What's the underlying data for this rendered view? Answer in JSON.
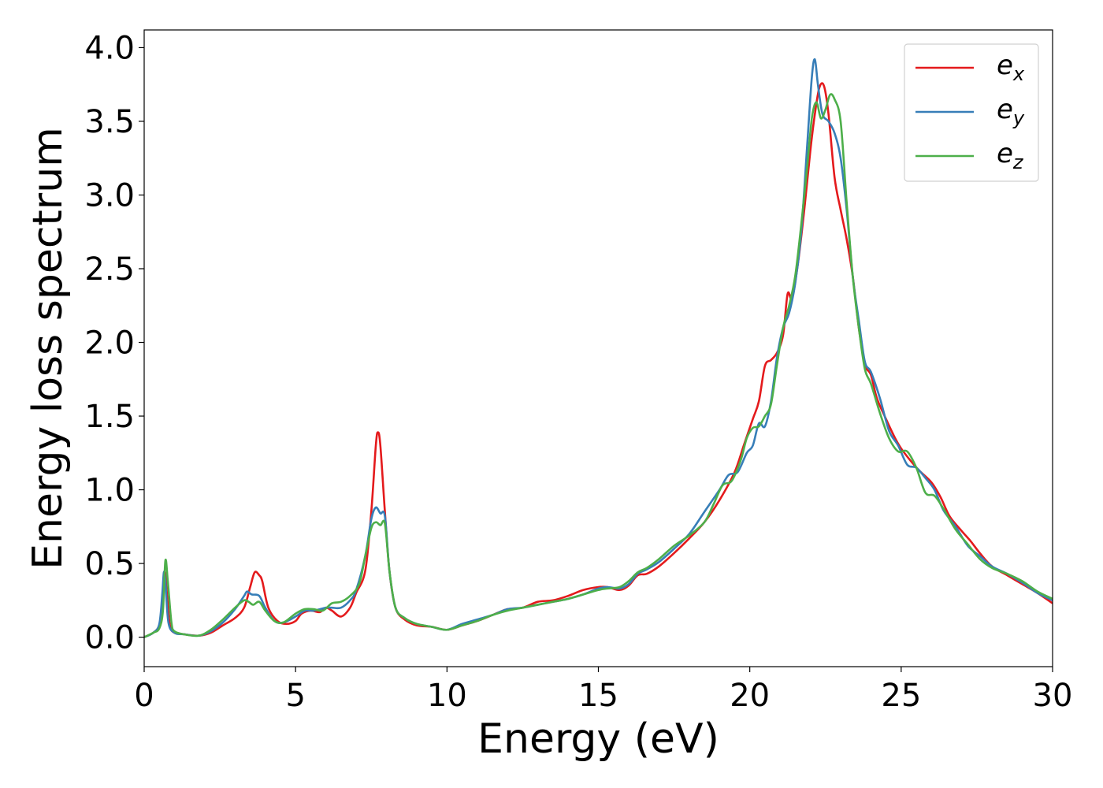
{
  "chart_data": {
    "type": "line",
    "xlabel": "Energy (eV)",
    "ylabel": "Energy loss spectrum",
    "xlim": [
      0,
      30
    ],
    "ylim": [
      -0.2,
      4.12
    ],
    "xticks": [
      "0",
      "5",
      "10",
      "15",
      "20",
      "25",
      "30"
    ],
    "yticks": [
      "0.0",
      "0.5",
      "1.0",
      "1.5",
      "2.0",
      "2.5",
      "3.0",
      "3.5",
      "4.0"
    ],
    "xtick_values": [
      0,
      5,
      10,
      15,
      20,
      25,
      30
    ],
    "ytick_values": [
      0,
      0.5,
      1.0,
      1.5,
      2.0,
      2.5,
      3.0,
      3.5,
      4.0
    ],
    "grid": false,
    "legend_position": "top-right",
    "series": [
      {
        "name_base": "e",
        "name_sub": "x",
        "color": "#e41a1c",
        "points": [
          [
            0,
            0
          ],
          [
            0.3,
            0.03
          ],
          [
            0.5,
            0.08
          ],
          [
            0.6,
            0.2
          ],
          [
            0.68,
            0.44
          ],
          [
            0.75,
            0.3
          ],
          [
            0.85,
            0.08
          ],
          [
            1.0,
            0.03
          ],
          [
            1.3,
            0.02
          ],
          [
            1.8,
            0.01
          ],
          [
            2.2,
            0.03
          ],
          [
            2.6,
            0.08
          ],
          [
            3.0,
            0.13
          ],
          [
            3.3,
            0.2
          ],
          [
            3.5,
            0.34
          ],
          [
            3.65,
            0.44
          ],
          [
            3.8,
            0.42
          ],
          [
            3.9,
            0.38
          ],
          [
            4.1,
            0.2
          ],
          [
            4.4,
            0.11
          ],
          [
            4.7,
            0.09
          ],
          [
            5.0,
            0.11
          ],
          [
            5.2,
            0.16
          ],
          [
            5.5,
            0.18
          ],
          [
            5.8,
            0.17
          ],
          [
            6.0,
            0.2
          ],
          [
            6.2,
            0.18
          ],
          [
            6.5,
            0.14
          ],
          [
            6.8,
            0.2
          ],
          [
            7.0,
            0.3
          ],
          [
            7.3,
            0.45
          ],
          [
            7.5,
            0.85
          ],
          [
            7.65,
            1.3
          ],
          [
            7.72,
            1.39
          ],
          [
            7.8,
            1.3
          ],
          [
            7.95,
            0.85
          ],
          [
            8.1,
            0.45
          ],
          [
            8.3,
            0.2
          ],
          [
            8.6,
            0.12
          ],
          [
            9.0,
            0.08
          ],
          [
            9.5,
            0.07
          ],
          [
            10.0,
            0.05
          ],
          [
            10.5,
            0.08
          ],
          [
            11.0,
            0.11
          ],
          [
            11.5,
            0.15
          ],
          [
            12.0,
            0.19
          ],
          [
            12.5,
            0.2
          ],
          [
            13.0,
            0.24
          ],
          [
            13.5,
            0.25
          ],
          [
            14.0,
            0.28
          ],
          [
            14.5,
            0.32
          ],
          [
            15.0,
            0.34
          ],
          [
            15.3,
            0.34
          ],
          [
            15.7,
            0.32
          ],
          [
            16.0,
            0.35
          ],
          [
            16.3,
            0.42
          ],
          [
            16.6,
            0.43
          ],
          [
            17.0,
            0.48
          ],
          [
            17.5,
            0.57
          ],
          [
            18.0,
            0.67
          ],
          [
            18.5,
            0.78
          ],
          [
            19.0,
            0.93
          ],
          [
            19.5,
            1.12
          ],
          [
            19.8,
            1.3
          ],
          [
            20.1,
            1.48
          ],
          [
            20.3,
            1.6
          ],
          [
            20.5,
            1.84
          ],
          [
            20.7,
            1.88
          ],
          [
            20.9,
            1.93
          ],
          [
            21.1,
            2.05
          ],
          [
            21.25,
            2.33
          ],
          [
            21.4,
            2.3
          ],
          [
            21.6,
            2.55
          ],
          [
            21.8,
            2.9
          ],
          [
            22.0,
            3.3
          ],
          [
            22.15,
            3.55
          ],
          [
            22.3,
            3.73
          ],
          [
            22.45,
            3.74
          ],
          [
            22.6,
            3.55
          ],
          [
            22.8,
            3.12
          ],
          [
            23.0,
            2.9
          ],
          [
            23.2,
            2.7
          ],
          [
            23.4,
            2.45
          ],
          [
            23.6,
            2.1
          ],
          [
            23.8,
            1.85
          ],
          [
            24.0,
            1.78
          ],
          [
            24.2,
            1.62
          ],
          [
            24.5,
            1.48
          ],
          [
            24.8,
            1.35
          ],
          [
            25.0,
            1.28
          ],
          [
            25.3,
            1.2
          ],
          [
            25.6,
            1.13
          ],
          [
            26.0,
            1.05
          ],
          [
            26.3,
            0.95
          ],
          [
            26.6,
            0.82
          ],
          [
            27.0,
            0.72
          ],
          [
            27.3,
            0.65
          ],
          [
            27.6,
            0.57
          ],
          [
            28.0,
            0.48
          ],
          [
            28.5,
            0.42
          ],
          [
            29.0,
            0.36
          ],
          [
            29.5,
            0.3
          ],
          [
            30.0,
            0.23
          ]
        ]
      },
      {
        "name_base": "e",
        "name_sub": "y",
        "color": "#377eb8",
        "points": [
          [
            0,
            0
          ],
          [
            0.3,
            0.03
          ],
          [
            0.5,
            0.09
          ],
          [
            0.6,
            0.3
          ],
          [
            0.65,
            0.44
          ],
          [
            0.7,
            0.38
          ],
          [
            0.8,
            0.1
          ],
          [
            1.0,
            0.03
          ],
          [
            1.3,
            0.02
          ],
          [
            1.8,
            0.01
          ],
          [
            2.2,
            0.04
          ],
          [
            2.6,
            0.1
          ],
          [
            3.0,
            0.19
          ],
          [
            3.3,
            0.28
          ],
          [
            3.4,
            0.31
          ],
          [
            3.55,
            0.29
          ],
          [
            3.8,
            0.28
          ],
          [
            4.0,
            0.2
          ],
          [
            4.3,
            0.11
          ],
          [
            4.6,
            0.1
          ],
          [
            5.0,
            0.14
          ],
          [
            5.3,
            0.18
          ],
          [
            5.6,
            0.18
          ],
          [
            6.0,
            0.2
          ],
          [
            6.2,
            0.2
          ],
          [
            6.5,
            0.2
          ],
          [
            6.8,
            0.25
          ],
          [
            7.0,
            0.32
          ],
          [
            7.3,
            0.55
          ],
          [
            7.5,
            0.8
          ],
          [
            7.65,
            0.88
          ],
          [
            7.8,
            0.84
          ],
          [
            7.95,
            0.82
          ],
          [
            8.1,
            0.45
          ],
          [
            8.3,
            0.2
          ],
          [
            8.6,
            0.13
          ],
          [
            9.0,
            0.09
          ],
          [
            9.5,
            0.07
          ],
          [
            10.0,
            0.05
          ],
          [
            10.5,
            0.09
          ],
          [
            11.0,
            0.12
          ],
          [
            11.5,
            0.15
          ],
          [
            12.0,
            0.19
          ],
          [
            12.5,
            0.2
          ],
          [
            13.0,
            0.22
          ],
          [
            13.5,
            0.24
          ],
          [
            14.0,
            0.26
          ],
          [
            14.5,
            0.29
          ],
          [
            15.0,
            0.33
          ],
          [
            15.3,
            0.34
          ],
          [
            15.7,
            0.33
          ],
          [
            16.0,
            0.36
          ],
          [
            16.3,
            0.43
          ],
          [
            16.6,
            0.46
          ],
          [
            17.0,
            0.51
          ],
          [
            17.5,
            0.6
          ],
          [
            18.0,
            0.7
          ],
          [
            18.5,
            0.85
          ],
          [
            19.0,
            1.0
          ],
          [
            19.3,
            1.1
          ],
          [
            19.6,
            1.12
          ],
          [
            19.9,
            1.25
          ],
          [
            20.1,
            1.3
          ],
          [
            20.3,
            1.45
          ],
          [
            20.5,
            1.43
          ],
          [
            20.7,
            1.6
          ],
          [
            20.9,
            1.9
          ],
          [
            21.1,
            2.1
          ],
          [
            21.3,
            2.2
          ],
          [
            21.5,
            2.4
          ],
          [
            21.7,
            2.75
          ],
          [
            21.9,
            3.35
          ],
          [
            22.05,
            3.8
          ],
          [
            22.15,
            3.92
          ],
          [
            22.25,
            3.75
          ],
          [
            22.4,
            3.55
          ],
          [
            22.6,
            3.5
          ],
          [
            22.8,
            3.42
          ],
          [
            23.0,
            3.25
          ],
          [
            23.2,
            2.9
          ],
          [
            23.4,
            2.45
          ],
          [
            23.6,
            2.15
          ],
          [
            23.8,
            1.87
          ],
          [
            24.0,
            1.8
          ],
          [
            24.3,
            1.62
          ],
          [
            24.6,
            1.4
          ],
          [
            24.9,
            1.3
          ],
          [
            25.2,
            1.17
          ],
          [
            25.5,
            1.15
          ],
          [
            25.8,
            1.08
          ],
          [
            26.1,
            1.0
          ],
          [
            26.4,
            0.86
          ],
          [
            26.8,
            0.75
          ],
          [
            27.2,
            0.62
          ],
          [
            27.6,
            0.55
          ],
          [
            28.0,
            0.48
          ],
          [
            28.5,
            0.43
          ],
          [
            29.0,
            0.37
          ],
          [
            29.5,
            0.3
          ],
          [
            30.0,
            0.25
          ]
        ]
      },
      {
        "name_base": "e",
        "name_sub": "z",
        "color": "#4daf4a",
        "points": [
          [
            0,
            0
          ],
          [
            0.3,
            0.03
          ],
          [
            0.5,
            0.06
          ],
          [
            0.62,
            0.18
          ],
          [
            0.7,
            0.52
          ],
          [
            0.78,
            0.38
          ],
          [
            0.9,
            0.1
          ],
          [
            1.0,
            0.04
          ],
          [
            1.3,
            0.02
          ],
          [
            1.8,
            0.01
          ],
          [
            2.2,
            0.05
          ],
          [
            2.6,
            0.12
          ],
          [
            3.0,
            0.2
          ],
          [
            3.3,
            0.25
          ],
          [
            3.45,
            0.24
          ],
          [
            3.6,
            0.22
          ],
          [
            3.8,
            0.24
          ],
          [
            4.0,
            0.18
          ],
          [
            4.3,
            0.11
          ],
          [
            4.6,
            0.1
          ],
          [
            5.0,
            0.16
          ],
          [
            5.3,
            0.19
          ],
          [
            5.6,
            0.19
          ],
          [
            5.9,
            0.18
          ],
          [
            6.2,
            0.23
          ],
          [
            6.5,
            0.24
          ],
          [
            6.8,
            0.28
          ],
          [
            7.1,
            0.36
          ],
          [
            7.3,
            0.55
          ],
          [
            7.5,
            0.74
          ],
          [
            7.65,
            0.78
          ],
          [
            7.8,
            0.76
          ],
          [
            7.95,
            0.77
          ],
          [
            8.1,
            0.45
          ],
          [
            8.3,
            0.2
          ],
          [
            8.6,
            0.13
          ],
          [
            9.0,
            0.09
          ],
          [
            9.5,
            0.07
          ],
          [
            10.0,
            0.05
          ],
          [
            10.5,
            0.08
          ],
          [
            11.0,
            0.11
          ],
          [
            11.5,
            0.15
          ],
          [
            12.0,
            0.18
          ],
          [
            12.5,
            0.2
          ],
          [
            13.0,
            0.22
          ],
          [
            13.5,
            0.24
          ],
          [
            14.0,
            0.26
          ],
          [
            14.5,
            0.29
          ],
          [
            15.0,
            0.32
          ],
          [
            15.3,
            0.33
          ],
          [
            15.7,
            0.34
          ],
          [
            16.0,
            0.38
          ],
          [
            16.3,
            0.44
          ],
          [
            16.6,
            0.47
          ],
          [
            17.0,
            0.53
          ],
          [
            17.5,
            0.62
          ],
          [
            18.0,
            0.69
          ],
          [
            18.5,
            0.78
          ],
          [
            18.8,
            0.9
          ],
          [
            19.1,
            1.03
          ],
          [
            19.4,
            1.06
          ],
          [
            19.7,
            1.2
          ],
          [
            19.9,
            1.35
          ],
          [
            20.1,
            1.42
          ],
          [
            20.3,
            1.43
          ],
          [
            20.5,
            1.5
          ],
          [
            20.7,
            1.58
          ],
          [
            20.9,
            1.85
          ],
          [
            21.1,
            2.1
          ],
          [
            21.3,
            2.25
          ],
          [
            21.5,
            2.45
          ],
          [
            21.7,
            2.8
          ],
          [
            21.9,
            3.2
          ],
          [
            22.05,
            3.52
          ],
          [
            22.2,
            3.63
          ],
          [
            22.35,
            3.52
          ],
          [
            22.5,
            3.58
          ],
          [
            22.65,
            3.68
          ],
          [
            22.8,
            3.65
          ],
          [
            23.0,
            3.5
          ],
          [
            23.2,
            2.95
          ],
          [
            23.4,
            2.45
          ],
          [
            23.6,
            2.1
          ],
          [
            23.8,
            1.82
          ],
          [
            24.0,
            1.72
          ],
          [
            24.3,
            1.52
          ],
          [
            24.6,
            1.35
          ],
          [
            24.9,
            1.26
          ],
          [
            25.2,
            1.26
          ],
          [
            25.5,
            1.15
          ],
          [
            25.8,
            0.98
          ],
          [
            26.1,
            0.96
          ],
          [
            26.4,
            0.87
          ],
          [
            26.8,
            0.73
          ],
          [
            27.2,
            0.63
          ],
          [
            27.6,
            0.53
          ],
          [
            28.0,
            0.47
          ],
          [
            28.5,
            0.43
          ],
          [
            29.0,
            0.38
          ],
          [
            29.5,
            0.31
          ],
          [
            30.0,
            0.26
          ]
        ]
      }
    ]
  }
}
